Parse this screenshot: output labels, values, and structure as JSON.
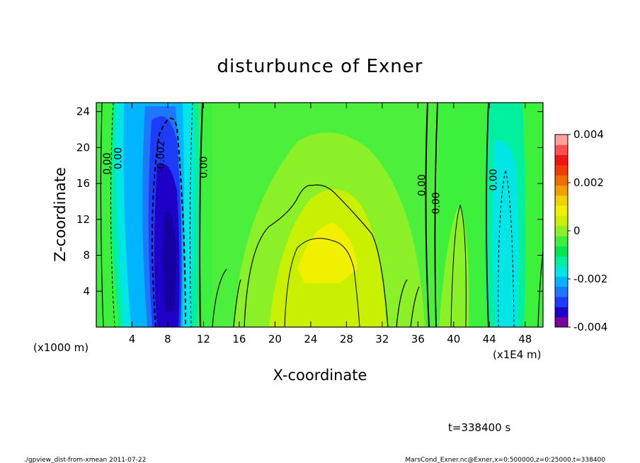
{
  "chart_data": {
    "type": "heatmap",
    "title": "disturbunce of Exner",
    "xlabel": "X-coordinate",
    "ylabel": "Z-coordinate",
    "x_unit_left": "(x1000 m)",
    "x_unit_right": "(x1E4 m)",
    "xlim": [
      0,
      50
    ],
    "ylim": [
      0,
      25
    ],
    "x_ticks": [
      4,
      8,
      12,
      16,
      20,
      24,
      28,
      32,
      36,
      40,
      44,
      48
    ],
    "y_ticks": [
      4,
      8,
      12,
      16,
      20,
      24
    ],
    "colorbar": {
      "range": [
        -0.004,
        0.004
      ],
      "labels": [
        "0.004",
        "0.002",
        "0",
        "-0.002",
        "-0.004"
      ],
      "label_values": [
        0.004,
        0.002,
        0,
        -0.002,
        -0.004
      ],
      "colors": [
        "#7a00a0",
        "#1e00c8",
        "#1e3cff",
        "#1e78ff",
        "#00b4ff",
        "#00e6e6",
        "#00f0a0",
        "#00e650",
        "#3cf03c",
        "#8cf028",
        "#c8f000",
        "#f0f000",
        "#f0d200",
        "#f0a000",
        "#f06e00",
        "#f03c00",
        "#f01414",
        "#ff5050",
        "#ffa0a0"
      ]
    },
    "contour_labels": [
      {
        "text": "0.00",
        "x": 1.2,
        "z": 18.2
      },
      {
        "text": "0.00",
        "x": 2.4,
        "z": 18.8
      },
      {
        "text": "-0.002",
        "x": 7.2,
        "z": 19.0
      },
      {
        "text": "0.00",
        "x": 12.0,
        "z": 17.8
      },
      {
        "text": "0.00",
        "x": 36.4,
        "z": 15.8
      },
      {
        "text": "0.00",
        "x": 38.0,
        "z": 13.8
      },
      {
        "text": "0.00",
        "x": 44.4,
        "z": 16.4
      }
    ],
    "time_label": "t=338400 s"
  },
  "footer": {
    "left": "./gpview_dist-from-xmean  2011-07-22",
    "right": "MarsCond_Exner.nc@Exner,x=0:500000,z=0:25000,t=338400"
  }
}
